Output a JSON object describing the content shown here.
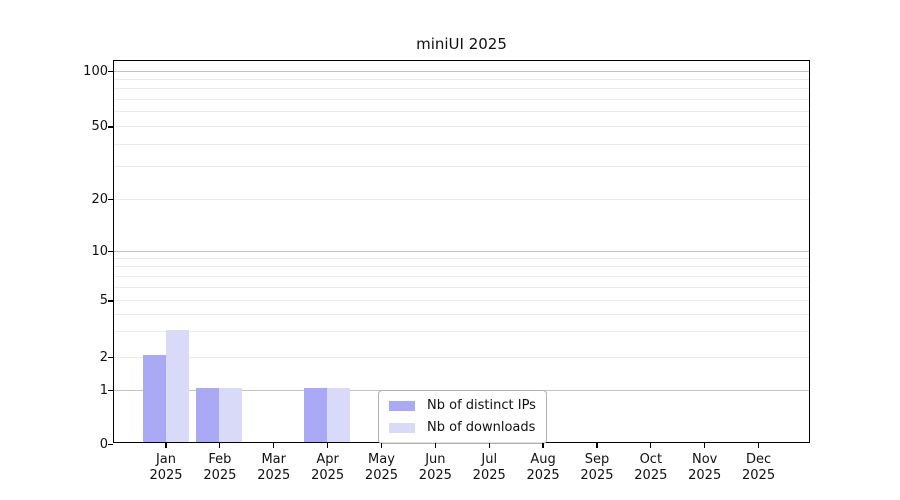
{
  "chart_data": {
    "type": "bar",
    "title": "miniUI 2025",
    "categories": [
      "Jan",
      "Feb",
      "Mar",
      "Apr",
      "May",
      "Jun",
      "Jul",
      "Aug",
      "Sep",
      "Oct",
      "Nov",
      "Dec"
    ],
    "category_year": "2025",
    "series": [
      {
        "name": "Nb of distinct IPs",
        "color": "#a9a9f5",
        "values": [
          2,
          1,
          0,
          1,
          0,
          0,
          0,
          0,
          0,
          0,
          0,
          0
        ]
      },
      {
        "name": "Nb of downloads",
        "color": "#d9d9f8",
        "values": [
          3,
          1,
          0,
          1,
          0,
          0,
          0,
          0,
          0,
          0,
          0,
          0
        ]
      }
    ],
    "yscale": "log-with-zero-floor",
    "ylim": [
      0,
      100
    ],
    "yticks": [
      0,
      1,
      2,
      5,
      10,
      20,
      50,
      100
    ],
    "y_major_gridlines": [
      1,
      10,
      100
    ],
    "y_minor_gridlines": [
      2,
      3,
      4,
      5,
      6,
      7,
      8,
      9,
      20,
      30,
      40,
      50,
      60,
      70,
      80,
      90
    ],
    "grid": "horizontal-only",
    "legend_position": "inside-bottom-center",
    "colors": {
      "major_grid": "#c3c3c3",
      "minor_grid": "#ebebeb",
      "axis": "#000000",
      "text": "#111111",
      "background": "#ffffff"
    }
  }
}
